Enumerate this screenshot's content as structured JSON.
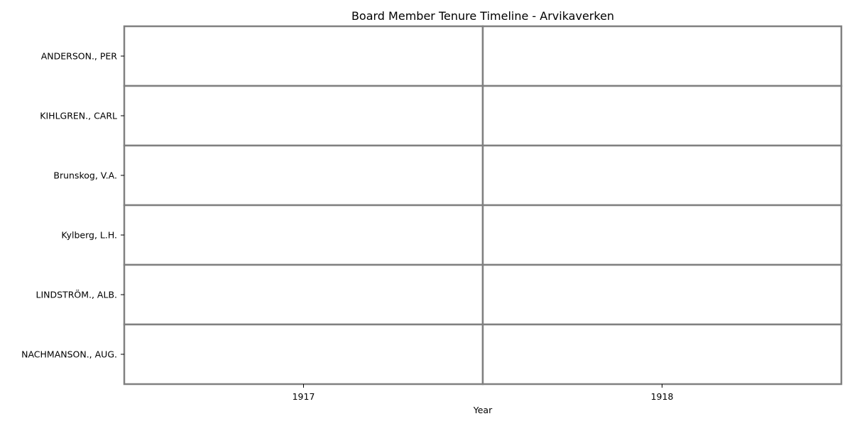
{
  "chart_data": {
    "type": "heatmap",
    "title": "Board Member Tenure Timeline - Arvikaverken",
    "xlabel": "Year",
    "ylabel": "",
    "x": [
      "1917",
      "1918"
    ],
    "y": [
      "ANDERSON., PER",
      "KIHLGREN., CARL",
      "Brunskog, V.A.",
      "Kylberg, L.H.",
      "LINDSTRÖM., ALB.",
      "NACHMANSON., AUG."
    ],
    "values": [
      [
        0,
        0
      ],
      [
        0,
        0
      ],
      [
        0,
        0
      ],
      [
        0,
        0
      ],
      [
        0,
        0
      ],
      [
        0,
        0
      ]
    ],
    "cell_color": "#ffffff",
    "grid_color": "#808080",
    "colorbar": false
  }
}
